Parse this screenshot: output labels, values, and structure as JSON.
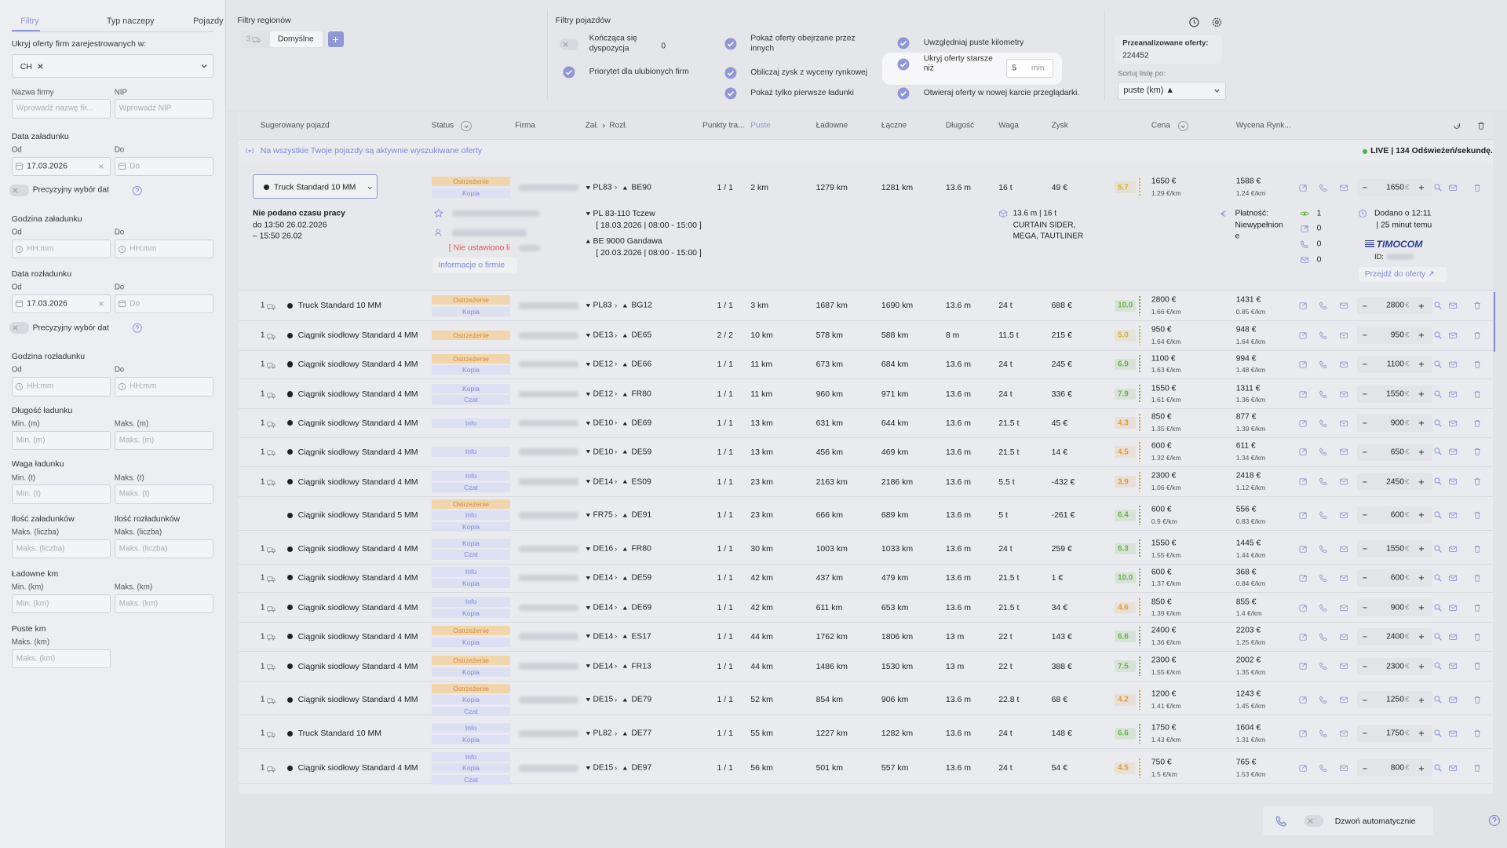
{
  "sidebar": {
    "tabs": [
      "Filtry",
      "Typ naczepy",
      "Pojazdy"
    ],
    "hide_label": "Ukryj oferty firm zarejestrowanych w:",
    "hide_chip": "CH",
    "sections": [
      {
        "fields": [
          {
            "label": "Nazwa firmy",
            "placeholder": "Wprowadź nazwę fir..."
          },
          {
            "label": "NIP",
            "placeholder": "Wprowadź NIP"
          }
        ]
      },
      {
        "title": "Data załadunku",
        "fields": [
          {
            "label": "Od",
            "value": "17.03.2026"
          },
          {
            "label": "Do",
            "placeholder": "Do"
          }
        ],
        "toggle": "Precyzyjny wybór dat"
      },
      {
        "title": "Godzina załadunku",
        "fields": [
          {
            "label": "Od",
            "placeholder": "HH:mm"
          },
          {
            "label": "Do",
            "placeholder": "HH:mm"
          }
        ]
      },
      {
        "title": "Data rozładunku",
        "fields": [
          {
            "label": "Od",
            "value": "17.03.2026"
          },
          {
            "label": "Do",
            "placeholder": "Do"
          }
        ],
        "toggle": "Precyzyjny wybór dat"
      },
      {
        "title": "Godzina rozładunku",
        "fields": [
          {
            "label": "Od",
            "placeholder": "HH:mm"
          },
          {
            "label": "Do",
            "placeholder": "HH:mm"
          }
        ]
      },
      {
        "title": "Długość ładunku",
        "fields": [
          {
            "label": "Min. (m)",
            "placeholder": "Min. (m)"
          },
          {
            "label": "Maks. (m)",
            "placeholder": "Maks. (m)"
          }
        ]
      },
      {
        "title": "Waga ładunku",
        "fields": [
          {
            "label": "Min. (t)",
            "placeholder": "Min. (t)"
          },
          {
            "label": "Maks. (t)",
            "placeholder": "Maks. (t)"
          }
        ]
      },
      {
        "fields": [
          {
            "title": "Ilość załadunków",
            "label": "Maks. (liczba)",
            "placeholder": "Maks. (liczba)"
          },
          {
            "title": "Ilość rozładunków",
            "label": "Maks. (liczba)",
            "placeholder": "Maks. (liczba)"
          }
        ]
      },
      {
        "title": "Ładowne km",
        "fields": [
          {
            "label": "Min. (km)",
            "placeholder": "Min. (km)"
          },
          {
            "label": "Maks. (km)",
            "placeholder": "Maks. (km)"
          }
        ]
      },
      {
        "title": "Puste km",
        "fields": [
          {
            "label": "Maks. (km)",
            "placeholder": "Maks. (km)"
          }
        ]
      }
    ]
  },
  "filters": {
    "regions_title": "Filtry regionów",
    "regions_count": "3",
    "preset": "Domyślne",
    "vehicles_title": "Filtry pojazdów",
    "options": [
      {
        "label": "Kończąca się dyspozycja",
        "checked": false,
        "extra": "0"
      },
      {
        "label": "Priorytet dla ulubionych firm",
        "checked": true
      },
      {
        "label": "Pokaż oferty obejrzane przez innych",
        "checked": true
      },
      {
        "label": "Obliczaj zysk z wyceny rynkowej",
        "checked": true
      },
      {
        "label": "Pokaż tylko pierwsze ładunki",
        "checked": true
      },
      {
        "label": "Uwzględniaj puste kilometry",
        "checked": true
      },
      {
        "label": "Ukryj oferty starsze niż",
        "checked": true,
        "input": "5",
        "unit": "min"
      },
      {
        "label": "Otwieraj oferty w nowej karcie przeglądarki.",
        "checked": true
      }
    ],
    "analyzed_label": "Przeanalizowane oferty:",
    "analyzed_value": "224452",
    "sort_label": "Sortuj listę po:",
    "sort_value": "puste (km) ▲"
  },
  "table": {
    "columns": [
      "Sugerowany pojazd",
      "Status",
      "Firma",
      "Zał.",
      "Rozł.",
      "Punkty tra...",
      "Puste",
      "Ładowne",
      "Łączne",
      "Długość",
      "Waga",
      "Zysk",
      "Cena",
      "Wycena Rynk..."
    ],
    "banner": "Na wszystkie Twoje pojazdy są aktywnie wyszukiwane oferty",
    "live": "LIVE | 134 Odświeżeń/sekundę.",
    "currency": "€",
    "rows": [
      {
        "count": null,
        "vehicle": "Truck Standard 10 MM",
        "statuses": [
          "Ostrzeżenie",
          "Kopia"
        ],
        "from": "PL83",
        "to": "BE90",
        "points": "1 / 1",
        "empty": "2 km",
        "loaded": "1279 km",
        "total": "1281 km",
        "length": "13.6 m",
        "weight": "16 t",
        "profit": "49 €",
        "score": "5.7",
        "price": "1650 €",
        "price_km": "1.29 €/km",
        "market": "1588 €",
        "market_km": "1.24 €/km",
        "bid": "1650"
      },
      {
        "count": "1",
        "vehicle": "Truck Standard 10 MM",
        "statuses": [
          "Ostrzeżenie",
          "Kopia"
        ],
        "from": "PL83",
        "to": "BG12",
        "points": "1 / 1",
        "empty": "3 km",
        "loaded": "1687 km",
        "total": "1690 km",
        "length": "13.6 m",
        "weight": "24 t",
        "profit": "688 €",
        "score": "10.0",
        "price": "2800 €",
        "price_km": "1.66 €/km",
        "market": "1431 €",
        "market_km": "0.85 €/km",
        "bid": "2800"
      },
      {
        "count": "1",
        "vehicle": "Ciągnik siodłowy Standard 4 MM",
        "statuses": [
          "Ostrzeżenie"
        ],
        "from": "DE13",
        "to": "DE65",
        "points": "2 / 2",
        "empty": "10 km",
        "loaded": "578 km",
        "total": "588 km",
        "length": "8 m",
        "weight": "11.5 t",
        "profit": "215 €",
        "score": "5.0",
        "price": "950 €",
        "price_km": "1.64 €/km",
        "market": "948 €",
        "market_km": "1.64 €/km",
        "bid": "950"
      },
      {
        "count": "1",
        "vehicle": "Ciągnik siodłowy Standard 4 MM",
        "statuses": [
          "Ostrzeżenie",
          "Kopia"
        ],
        "from": "DE12",
        "to": "DE66",
        "points": "1 / 1",
        "empty": "11 km",
        "loaded": "673 km",
        "total": "684 km",
        "length": "13.6 m",
        "weight": "24 t",
        "profit": "245 €",
        "score": "6.9",
        "price": "1100 €",
        "price_km": "1.63 €/km",
        "market": "994 €",
        "market_km": "1.48 €/km",
        "bid": "1100"
      },
      {
        "count": "1",
        "vehicle": "Ciągnik siodłowy Standard 4 MM",
        "statuses": [
          "Kopia",
          "Czat"
        ],
        "from": "DE12",
        "to": "FR80",
        "points": "1 / 1",
        "empty": "11 km",
        "loaded": "960 km",
        "total": "971 km",
        "length": "13.6 m",
        "weight": "24 t",
        "profit": "336 €",
        "score": "7.9",
        "price": "1550 €",
        "price_km": "1.61 €/km",
        "market": "1311 €",
        "market_km": "1.36 €/km",
        "bid": "1550"
      },
      {
        "count": "1",
        "vehicle": "Ciągnik siodłowy Standard 4 MM",
        "statuses": [
          "Info"
        ],
        "from": "DE10",
        "to": "DE69",
        "points": "1 / 1",
        "empty": "13 km",
        "loaded": "631 km",
        "total": "644 km",
        "length": "13.6 m",
        "weight": "21.5 t",
        "profit": "45 €",
        "score": "4.3",
        "price": "850 €",
        "price_km": "1.35 €/km",
        "market": "877 €",
        "market_km": "1.39 €/km",
        "bid": "900"
      },
      {
        "count": "1",
        "vehicle": "Ciągnik siodłowy Standard 4 MM",
        "statuses": [
          "Info"
        ],
        "from": "DE10",
        "to": "DE59",
        "points": "1 / 1",
        "empty": "13 km",
        "loaded": "456 km",
        "total": "469 km",
        "length": "13.6 m",
        "weight": "21.5 t",
        "profit": "14 €",
        "score": "4.5",
        "price": "600 €",
        "price_km": "1.32 €/km",
        "market": "611 €",
        "market_km": "1.34 €/km",
        "bid": "650"
      },
      {
        "count": "1",
        "vehicle": "Ciągnik siodłowy Standard 4 MM",
        "statuses": [
          "Info",
          "Czat"
        ],
        "from": "DE14",
        "to": "ES09",
        "points": "1 / 1",
        "empty": "23 km",
        "loaded": "2163 km",
        "total": "2186 km",
        "length": "13.6 m",
        "weight": "5.5 t",
        "profit": "-432 €",
        "score": "3.9",
        "price": "2300 €",
        "price_km": "1.06 €/km",
        "market": "2418 €",
        "market_km": "1.12 €/km",
        "bid": "2450"
      },
      {
        "count": null,
        "vehicle": "Ciągnik siodłowy Standard 5 MM",
        "statuses": [
          "Ostrzeżenie",
          "Info",
          "Kopia"
        ],
        "from": "FR75",
        "to": "DE91",
        "points": "1 / 1",
        "empty": "23 km",
        "loaded": "666 km",
        "total": "689 km",
        "length": "13.6 m",
        "weight": "5 t",
        "profit": "-261 €",
        "score": "6.4",
        "price": "600 €",
        "price_km": "0.9 €/km",
        "market": "556 €",
        "market_km": "0.83 €/km",
        "bid": "600"
      },
      {
        "count": "1",
        "vehicle": "Ciągnik siodłowy Standard 4 MM",
        "statuses": [
          "Kopia",
          "Czat"
        ],
        "from": "DE16",
        "to": "FR80",
        "points": "1 / 1",
        "empty": "30 km",
        "loaded": "1003 km",
        "total": "1033 km",
        "length": "13.6 m",
        "weight": "24 t",
        "profit": "259 €",
        "score": "6.3",
        "price": "1550 €",
        "price_km": "1.55 €/km",
        "market": "1445 €",
        "market_km": "1.44 €/km",
        "bid": "1550"
      },
      {
        "count": "1",
        "vehicle": "Ciągnik siodłowy Standard 4 MM",
        "statuses": [
          "Info",
          "Kopia"
        ],
        "from": "DE14",
        "to": "DE59",
        "points": "1 / 1",
        "empty": "42 km",
        "loaded": "437 km",
        "total": "479 km",
        "length": "13.6 m",
        "weight": "21.5 t",
        "profit": "1 €",
        "score": "10.0",
        "price": "600 €",
        "price_km": "1.37 €/km",
        "market": "368 €",
        "market_km": "0.84 €/km",
        "bid": "600"
      },
      {
        "count": "1",
        "vehicle": "Ciągnik siodłowy Standard 4 MM",
        "statuses": [
          "Info",
          "Kopia"
        ],
        "from": "DE14",
        "to": "DE69",
        "points": "1 / 1",
        "empty": "42 km",
        "loaded": "611 km",
        "total": "653 km",
        "length": "13.6 m",
        "weight": "21.5 t",
        "profit": "34 €",
        "score": "4.6",
        "price": "850 €",
        "price_km": "1.39 €/km",
        "market": "855 €",
        "market_km": "1.4 €/km",
        "bid": "900"
      },
      {
        "count": "1",
        "vehicle": "Ciągnik siodłowy Standard 4 MM",
        "statuses": [
          "Ostrzeżenie",
          "Kopia"
        ],
        "from": "DE14",
        "to": "ES17",
        "points": "1 / 1",
        "empty": "44 km",
        "loaded": "1762 km",
        "total": "1806 km",
        "length": "13 m",
        "weight": "22 t",
        "profit": "143 €",
        "score": "6.6",
        "price": "2400 €",
        "price_km": "1.36 €/km",
        "market": "2203 €",
        "market_km": "1.25 €/km",
        "bid": "2400"
      },
      {
        "count": "1",
        "vehicle": "Ciągnik siodłowy Standard 4 MM",
        "statuses": [
          "Ostrzeżenie",
          "Kopia"
        ],
        "from": "DE14",
        "to": "FR13",
        "points": "1 / 1",
        "empty": "44 km",
        "loaded": "1486 km",
        "total": "1530 km",
        "length": "13 m",
        "weight": "22 t",
        "profit": "388 €",
        "score": "7.5",
        "price": "2300 €",
        "price_km": "1.55 €/km",
        "market": "2002 €",
        "market_km": "1.35 €/km",
        "bid": "2300"
      },
      {
        "count": "1",
        "vehicle": "Ciągnik siodłowy Standard 4 MM",
        "statuses": [
          "Ostrzeżenie",
          "Kopia",
          "Czat"
        ],
        "from": "DE15",
        "to": "DE79",
        "points": "1 / 1",
        "empty": "52 km",
        "loaded": "854 km",
        "total": "906 km",
        "length": "13.6 m",
        "weight": "22.8 t",
        "profit": "68 €",
        "score": "4.2",
        "price": "1200 €",
        "price_km": "1.41 €/km",
        "market": "1243 €",
        "market_km": "1.45 €/km",
        "bid": "1250"
      },
      {
        "count": "1",
        "vehicle": "Truck Standard 10 MM",
        "statuses": [
          "Info",
          "Kopia"
        ],
        "from": "PL82",
        "to": "DE77",
        "points": "1 / 1",
        "empty": "55 km",
        "loaded": "1227 km",
        "total": "1282 km",
        "length": "13.6 m",
        "weight": "24 t",
        "profit": "148 €",
        "score": "6.6",
        "price": "1750 €",
        "price_km": "1.43 €/km",
        "market": "1604 €",
        "market_km": "1.31 €/km",
        "bid": "1750"
      },
      {
        "count": "1",
        "vehicle": "Ciągnik siodłowy Standard 4 MM",
        "statuses": [
          "Info",
          "Kopia",
          "Czat"
        ],
        "from": "DE15",
        "to": "DE97",
        "points": "1 / 1",
        "empty": "56 km",
        "loaded": "501 km",
        "total": "557 km",
        "length": "13.6 m",
        "weight": "24 t",
        "profit": "54 €",
        "score": "4.5",
        "price": "750 €",
        "price_km": "1.5 €/km",
        "market": "765 €",
        "market_km": "1.53 €/km",
        "bid": "800"
      }
    ],
    "details": {
      "work": [
        "Nie podano czasu pracy",
        "do 13:50 26.02.2026",
        "– 15:50 26.02"
      ],
      "limit": "[ Nie ustawiono li",
      "company_info": "Informacje o firmie",
      "load_place": "PL 83-110 Tczew",
      "load_time": "[ 18.03.2026 | 08:00 - 15:00 ]",
      "unload_place": "BE 9000 Gandawa",
      "unload_time": "[ 20.03.2026 | 08:00 - 15:00 ]",
      "cargo": [
        "13.6 m | 16 t",
        "CURTAIN SIDER,",
        "MEGA, TAUTLINER"
      ],
      "payment": [
        "Płatność:",
        "Niewypełnion",
        "e"
      ],
      "stats": [
        "1",
        "0",
        "0",
        "0"
      ],
      "added": [
        "Dodano o 12:11",
        "| 25 minut temu"
      ],
      "source": "TIMOCOM",
      "id": "ID:",
      "open": "Przejdź do oferty ↗"
    }
  },
  "auto_call": "Dzwoń automatycznie"
}
